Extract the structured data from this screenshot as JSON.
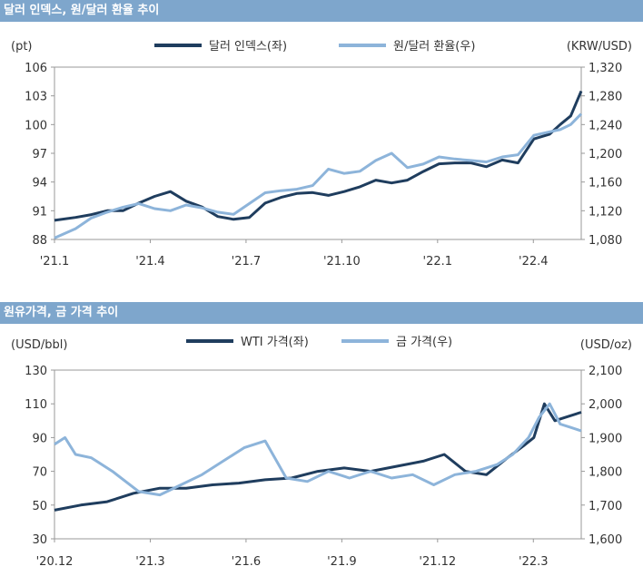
{
  "chart_data": [
    {
      "type": "line",
      "title": "달러 인덱스, 원/달러 환율 추이",
      "y_left_unit": "(pt)",
      "y_right_unit": "(KRW/USD)",
      "x_ticks": [
        "'21.1",
        "'21.4",
        "'21.7",
        "'21.10",
        "'22.1",
        "'22.4"
      ],
      "y_left": {
        "min": 88,
        "max": 106,
        "ticks": [
          "106",
          "103",
          "100",
          "97",
          "94",
          "91",
          "88"
        ]
      },
      "y_right": {
        "min": 1080,
        "max": 1320,
        "ticks": [
          "1,320",
          "1,280",
          "1,240",
          "1,200",
          "1,160",
          "1,120",
          "1,080"
        ]
      },
      "series": [
        {
          "name": "달러 인덱스(좌)",
          "axis": "left",
          "color": "#1f3d5e",
          "x": [
            0,
            0.04,
            0.07,
            0.1,
            0.13,
            0.16,
            0.19,
            0.22,
            0.25,
            0.28,
            0.31,
            0.34,
            0.37,
            0.4,
            0.43,
            0.46,
            0.49,
            0.52,
            0.55,
            0.58,
            0.61,
            0.64,
            0.67,
            0.7,
            0.73,
            0.76,
            0.79,
            0.82,
            0.85,
            0.88,
            0.91,
            0.94,
            0.96,
            0.98,
            1.0
          ],
          "values": [
            90.0,
            90.3,
            90.6,
            91.0,
            91.0,
            91.8,
            92.5,
            93.0,
            92.0,
            91.4,
            90.4,
            90.1,
            90.3,
            91.8,
            92.4,
            92.8,
            92.9,
            92.6,
            93.0,
            93.5,
            94.2,
            93.9,
            94.2,
            95.1,
            95.9,
            96.0,
            96.0,
            95.6,
            96.3,
            96.0,
            98.5,
            99.0,
            100.0,
            100.9,
            103.5
          ]
        },
        {
          "name": "원/달러 환율(우)",
          "axis": "right",
          "color": "#8db4da",
          "x": [
            0,
            0.04,
            0.07,
            0.1,
            0.13,
            0.16,
            0.19,
            0.22,
            0.25,
            0.28,
            0.31,
            0.34,
            0.37,
            0.4,
            0.43,
            0.46,
            0.49,
            0.52,
            0.55,
            0.58,
            0.61,
            0.64,
            0.67,
            0.7,
            0.73,
            0.76,
            0.79,
            0.82,
            0.85,
            0.88,
            0.91,
            0.94,
            0.96,
            0.98,
            1.0
          ],
          "values": [
            1082,
            1095,
            1110,
            1118,
            1125,
            1130,
            1123,
            1120,
            1128,
            1124,
            1118,
            1115,
            1130,
            1145,
            1148,
            1150,
            1155,
            1178,
            1172,
            1175,
            1190,
            1200,
            1180,
            1185,
            1195,
            1192,
            1190,
            1188,
            1195,
            1198,
            1225,
            1230,
            1233,
            1240,
            1255
          ]
        }
      ]
    },
    {
      "type": "line",
      "title": "원유가격, 금 가격 추이",
      "y_left_unit": "(USD/bbl)",
      "y_right_unit": "(USD/oz)",
      "x_ticks": [
        "'20.12",
        "'21.3",
        "'21.6",
        "'21.9",
        "'21.12",
        "'22.3"
      ],
      "y_left": {
        "min": 30,
        "max": 130,
        "ticks": [
          "130",
          "110",
          "90",
          "70",
          "50",
          "30"
        ]
      },
      "y_right": {
        "min": 1600,
        "max": 2100,
        "ticks": [
          "2,100",
          "2,000",
          "1,900",
          "1,800",
          "1,700",
          "1,600"
        ]
      },
      "series": [
        {
          "name": "WTI 가격(좌)",
          "axis": "left",
          "color": "#1f3d5e",
          "x": [
            0,
            0.05,
            0.1,
            0.15,
            0.2,
            0.25,
            0.3,
            0.35,
            0.4,
            0.45,
            0.5,
            0.55,
            0.6,
            0.65,
            0.7,
            0.74,
            0.78,
            0.82,
            0.86,
            0.89,
            0.91,
            0.93,
            0.95,
            0.97,
            1.0
          ],
          "values": [
            47,
            50,
            52,
            57,
            60,
            60,
            62,
            63,
            65,
            66,
            70,
            72,
            70,
            73,
            76,
            80,
            70,
            68,
            78,
            85,
            90,
            110,
            100,
            102,
            105
          ]
        },
        {
          "name": "금 가격(우)",
          "axis": "right",
          "color": "#8db4da",
          "x": [
            0,
            0.02,
            0.04,
            0.07,
            0.11,
            0.16,
            0.2,
            0.24,
            0.28,
            0.32,
            0.36,
            0.4,
            0.44,
            0.48,
            0.52,
            0.56,
            0.6,
            0.64,
            0.68,
            0.72,
            0.76,
            0.8,
            0.84,
            0.87,
            0.9,
            0.92,
            0.94,
            0.96,
            0.98,
            1.0
          ],
          "values": [
            1880,
            1900,
            1850,
            1840,
            1800,
            1740,
            1730,
            1760,
            1790,
            1830,
            1870,
            1890,
            1780,
            1770,
            1800,
            1780,
            1800,
            1780,
            1790,
            1760,
            1790,
            1800,
            1820,
            1850,
            1900,
            1960,
            2000,
            1940,
            1930,
            1920
          ]
        }
      ]
    }
  ]
}
